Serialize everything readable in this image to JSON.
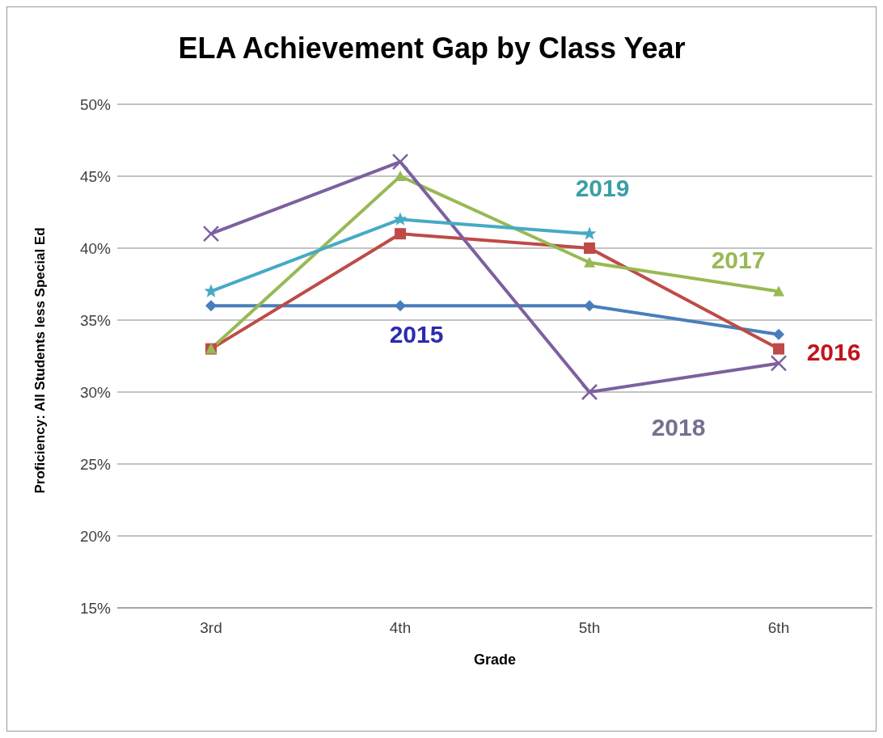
{
  "chart_data": {
    "type": "line",
    "title": "ELA Achievement Gap by Class Year",
    "xlabel": "Grade",
    "ylabel": "Proficiency: All Students less Special Ed",
    "categories": [
      "3rd",
      "4th",
      "5th",
      "6th"
    ],
    "series": [
      {
        "name": "2015",
        "color": "#4a7ebb",
        "marker": "diamond",
        "values": [
          36,
          36,
          36,
          34
        ]
      },
      {
        "name": "2016",
        "color": "#be4b48",
        "marker": "square",
        "values": [
          33,
          41,
          40,
          33
        ]
      },
      {
        "name": "2017",
        "color": "#98b954",
        "marker": "triangle",
        "values": [
          33,
          45,
          39,
          37
        ]
      },
      {
        "name": "2018",
        "color": "#7d60a0",
        "marker": "cross",
        "values": [
          41,
          46,
          30,
          32
        ]
      },
      {
        "name": "2019",
        "color": "#46aac5",
        "marker": "star",
        "values": [
          37,
          42,
          41,
          null
        ]
      }
    ],
    "ylim": [
      15,
      50
    ],
    "yticks": [
      {
        "value": 15,
        "label": "15%"
      },
      {
        "value": 20,
        "label": "20%"
      },
      {
        "value": 25,
        "label": "25%"
      },
      {
        "value": 30,
        "label": "30%"
      },
      {
        "value": 35,
        "label": "35%"
      },
      {
        "value": 40,
        "label": "40%"
      },
      {
        "value": 45,
        "label": "45%"
      },
      {
        "value": 50,
        "label": "50%"
      }
    ],
    "grid": "y",
    "legend": false,
    "line_style": "solid"
  }
}
